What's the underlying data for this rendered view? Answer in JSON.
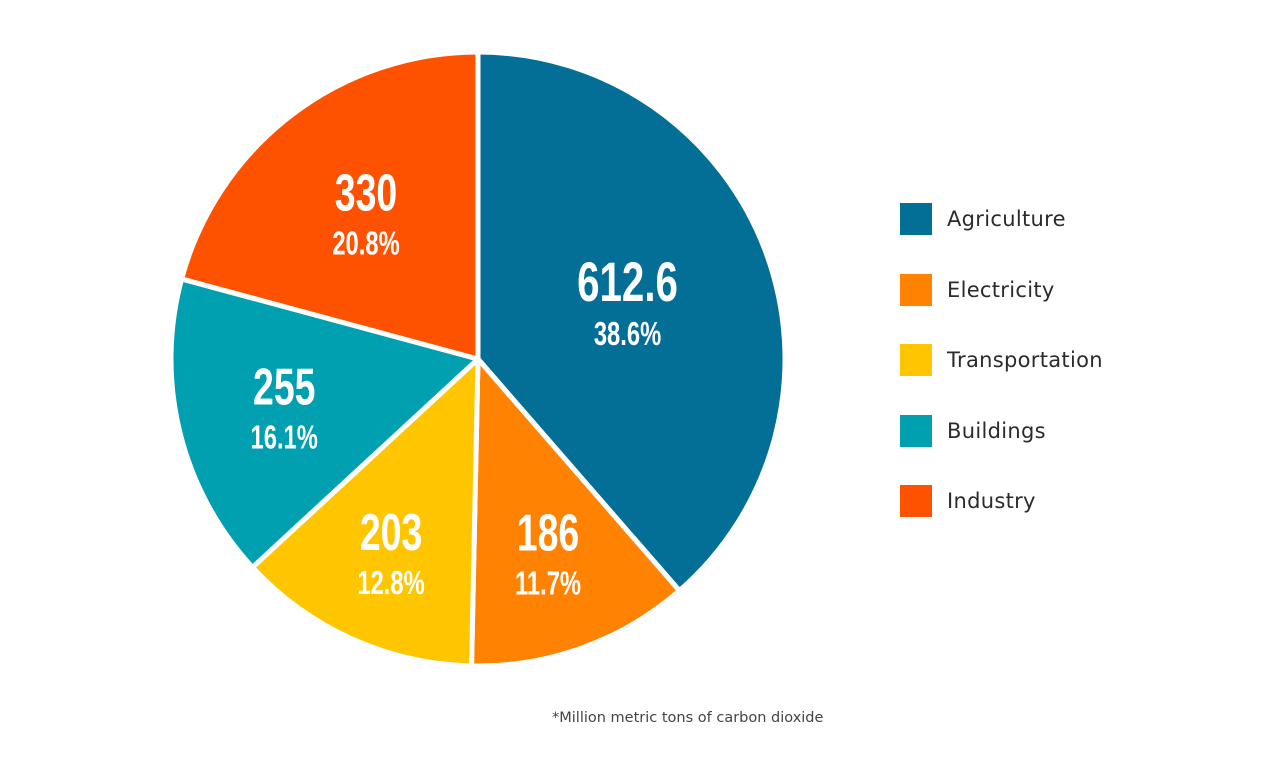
{
  "chart_data": {
    "type": "pie",
    "title": "",
    "unit_note": "*Million metric tons of carbon dioxide",
    "legend_position": "right",
    "start": "12 o'clock, clockwise",
    "slices": [
      {
        "label": "Agriculture",
        "value": 612.6,
        "value_label": "612.6",
        "percent_label": "38.6%",
        "color": "#036e96"
      },
      {
        "label": "Electricity",
        "value": 186,
        "value_label": "186",
        "percent_label": "11.7%",
        "color": "#ff8200"
      },
      {
        "label": "Transportation",
        "value": 203,
        "value_label": "203",
        "percent_label": "12.8%",
        "color": "#ffc600"
      },
      {
        "label": "Buildings",
        "value": 255,
        "value_label": "255",
        "percent_label": "16.1%",
        "color": "#00a0b0"
      },
      {
        "label": "Industry",
        "value": 330,
        "value_label": "330",
        "percent_label": "20.8%",
        "color": "#ff5200"
      }
    ]
  }
}
